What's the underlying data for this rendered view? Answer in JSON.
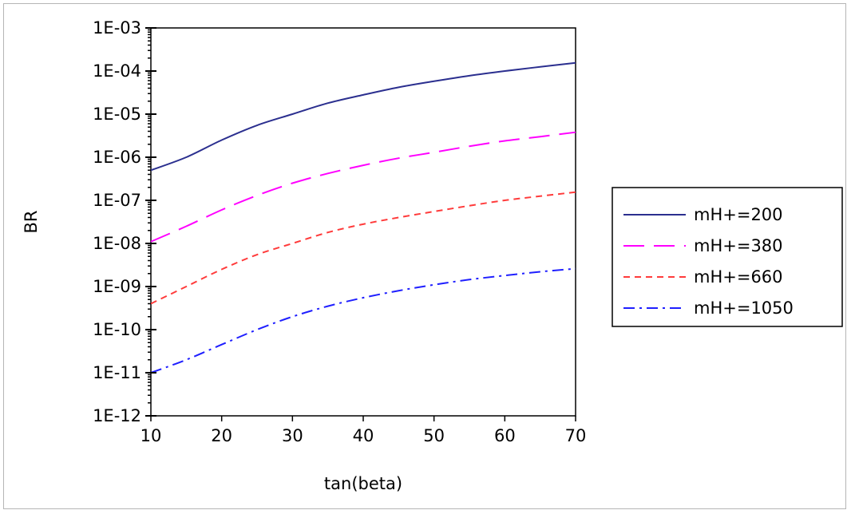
{
  "chart_data": {
    "type": "line",
    "xlabel": "tan(beta)",
    "ylabel": "BR",
    "xlim": [
      10,
      70
    ],
    "x_ticks": [
      10,
      20,
      30,
      40,
      50,
      60,
      70
    ],
    "x_tick_labels": [
      "10",
      "20",
      "30",
      "40",
      "50",
      "60",
      "70"
    ],
    "y_scale": "log",
    "ylim": [
      1e-12,
      0.001
    ],
    "y_ticks": [
      1e-12,
      1e-11,
      1e-10,
      1e-09,
      1e-08,
      1e-07,
      1e-06,
      1e-05,
      0.0001,
      0.001
    ],
    "y_tick_labels": [
      "1E-12",
      "1E-11",
      "1E-10",
      "1E-09",
      "1E-08",
      "1E-07",
      "1E-06",
      "1E-05",
      "1E-04",
      "1E-03"
    ],
    "grid": false,
    "legend_position": "right",
    "x": [
      10,
      15,
      20,
      25,
      30,
      35,
      40,
      45,
      50,
      55,
      60,
      65,
      70
    ],
    "series": [
      {
        "name": "mH+=200",
        "color": "#2b2f8f",
        "dash": "solid",
        "values": [
          5e-07,
          1e-06,
          2.5e-06,
          5.5e-06,
          1e-05,
          1.8e-05,
          2.8e-05,
          4.2e-05,
          5.8e-05,
          7.8e-05,
          0.0001,
          0.000125,
          0.000155
        ]
      },
      {
        "name": "mH+=380",
        "color": "#ff00ff",
        "dash": "long-dash",
        "values": [
          1.1e-08,
          2.5e-08,
          6e-08,
          1.3e-07,
          2.5e-07,
          4.2e-07,
          6.5e-07,
          9.5e-07,
          1.3e-06,
          1.8e-06,
          2.4e-06,
          3e-06,
          3.8e-06
        ]
      },
      {
        "name": "mH+=660",
        "color": "#ff3b3b",
        "dash": "dash",
        "values": [
          4e-10,
          1e-09,
          2.5e-09,
          5.5e-09,
          1e-08,
          1.8e-08,
          2.8e-08,
          4e-08,
          5.5e-08,
          7.5e-08,
          1e-07,
          1.25e-07,
          1.55e-07
        ]
      },
      {
        "name": "mH+=1050",
        "color": "#1f1fff",
        "dash": "dash-dot",
        "values": [
          1e-11,
          2e-11,
          4.5e-11,
          1e-10,
          2e-10,
          3.5e-10,
          5.5e-10,
          8e-10,
          1.1e-09,
          1.45e-09,
          1.8e-09,
          2.2e-09,
          2.6e-09
        ]
      }
    ]
  }
}
